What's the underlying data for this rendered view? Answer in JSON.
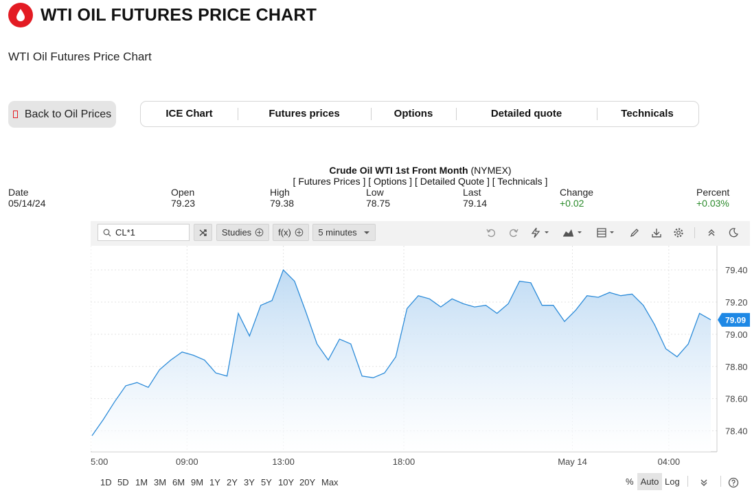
{
  "header": {
    "title": "WTI OIL FUTURES PRICE CHART",
    "subtitle": "WTI Oil Futures Price Chart"
  },
  "nav": {
    "back": "Back to Oil Prices",
    "tabs": [
      "ICE Chart",
      "Futures prices",
      "Options",
      "Detailed quote",
      "Technicals"
    ]
  },
  "quote": {
    "title": "Crude Oil WTI 1st Front Month",
    "exchange": "(NYMEX)",
    "links": "[ Futures Prices ] [ Options ] [ Detailed Quote ] [ Technicals ]",
    "date_label": "Date",
    "date": "05/14/24",
    "open_label": "Open",
    "open": "79.23",
    "high_label": "High",
    "high": "79.38",
    "low_label": "Low",
    "low": "78.75",
    "last_label": "Last",
    "last": "79.14",
    "change_label": "Change",
    "change": "+0.02",
    "percent_label": "Percent",
    "percent": "+0.03%"
  },
  "toolbar": {
    "symbol": "CL*1",
    "studies": "Studies",
    "fx": "f(x)",
    "interval": "5 minutes"
  },
  "ranges": [
    "1D",
    "5D",
    "1M",
    "3M",
    "6M",
    "9M",
    "1Y",
    "2Y",
    "3Y",
    "5Y",
    "10Y",
    "20Y",
    "Max"
  ],
  "scale": {
    "percent": "%",
    "auto": "Auto",
    "log": "Log"
  },
  "colors": {
    "accent": "#e31b23",
    "line": "#2b8bd9",
    "current": "#1e88e5",
    "green": "#2a8a2a"
  },
  "chart_data": {
    "type": "area",
    "current_price": "79.09",
    "y_ticks": [
      "79.40",
      "79.20",
      "79.00",
      "78.80",
      "78.60",
      "78.40"
    ],
    "ylim": [
      78.27,
      79.55
    ],
    "x_ticks": [
      {
        "label": "5:00",
        "x": 0
      },
      {
        "label": "09:00",
        "x": 48
      },
      {
        "label": "13:00",
        "x": 96
      },
      {
        "label": "18:00",
        "x": 156
      },
      {
        "label": "May 14",
        "x": 240
      },
      {
        "label": "04:00",
        "x": 288
      }
    ],
    "xlim": [
      0,
      312
    ],
    "values": [
      78.37,
      78.47,
      78.58,
      78.68,
      78.7,
      78.67,
      78.78,
      78.84,
      78.89,
      78.87,
      78.84,
      78.76,
      78.74,
      79.13,
      78.99,
      79.18,
      79.21,
      79.4,
      79.33,
      79.14,
      78.94,
      78.84,
      78.97,
      78.94,
      78.74,
      78.73,
      78.76,
      78.86,
      79.16,
      79.24,
      79.22,
      79.17,
      79.22,
      79.19,
      79.17,
      79.18,
      79.13,
      79.19,
      79.33,
      79.32,
      79.18,
      79.18,
      79.08,
      79.15,
      79.24,
      79.23,
      79.26,
      79.24,
      79.25,
      79.18,
      79.06,
      78.91,
      78.86,
      78.94,
      79.13,
      79.09
    ]
  }
}
